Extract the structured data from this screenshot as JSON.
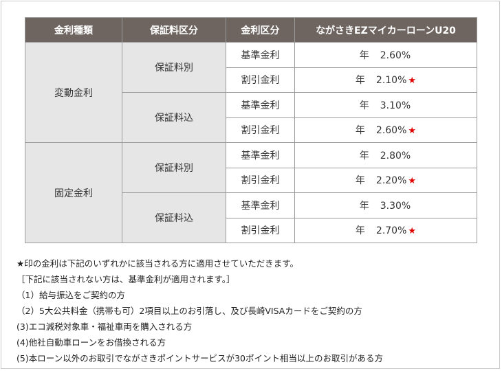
{
  "table": {
    "headers": [
      "金利種類",
      "保証料区分",
      "金利区分",
      "ながさきEZマイカーローンU20"
    ],
    "groups": [
      {
        "type": "変動金利",
        "fees": [
          {
            "fee": "保証料別",
            "rows": [
              {
                "class": "基準金利",
                "prefix": "年",
                "rate": "2.60%",
                "star": ""
              },
              {
                "class": "割引金利",
                "prefix": "年",
                "rate": "2.10%",
                "star": "★"
              }
            ]
          },
          {
            "fee": "保証料込",
            "rows": [
              {
                "class": "基準金利",
                "prefix": "年",
                "rate": "3.10%",
                "star": ""
              },
              {
                "class": "割引金利",
                "prefix": "年",
                "rate": "2.60%",
                "star": "★"
              }
            ]
          }
        ]
      },
      {
        "type": "固定金利",
        "fees": [
          {
            "fee": "保証料別",
            "rows": [
              {
                "class": "基準金利",
                "prefix": "年",
                "rate": "2.80%",
                "star": ""
              },
              {
                "class": "割引金利",
                "prefix": "年",
                "rate": "2.20%",
                "star": "★"
              }
            ]
          },
          {
            "fee": "保証料込",
            "rows": [
              {
                "class": "基準金利",
                "prefix": "年",
                "rate": "3.30%",
                "star": ""
              },
              {
                "class": "割引金利",
                "prefix": "年",
                "rate": "2.70%",
                "star": "★"
              }
            ]
          }
        ]
      }
    ]
  },
  "notes": [
    "★印の金利は下記のいずれかに該当される方に適用させていただきます。",
    "［下記に該当されない方は、基準金利が適用されます。］",
    "（1）給与振込をご契約の方",
    "（2）5大公共料金（携帯も可）2項目以上のお引落し、及び長崎VISAカードをご契約の方",
    "(3)エコ減税対象車・福祉車両を購入される方",
    "(4)他社自動車ローンをお借換される方",
    "(5)本ローン以外のお取引でながさきポイントサービスが30ポイント相当以上のお取引がある方"
  ],
  "colors": {
    "header_bg": "#6e6460",
    "label_bg": "#e6e6e6",
    "star": "#e10000"
  }
}
